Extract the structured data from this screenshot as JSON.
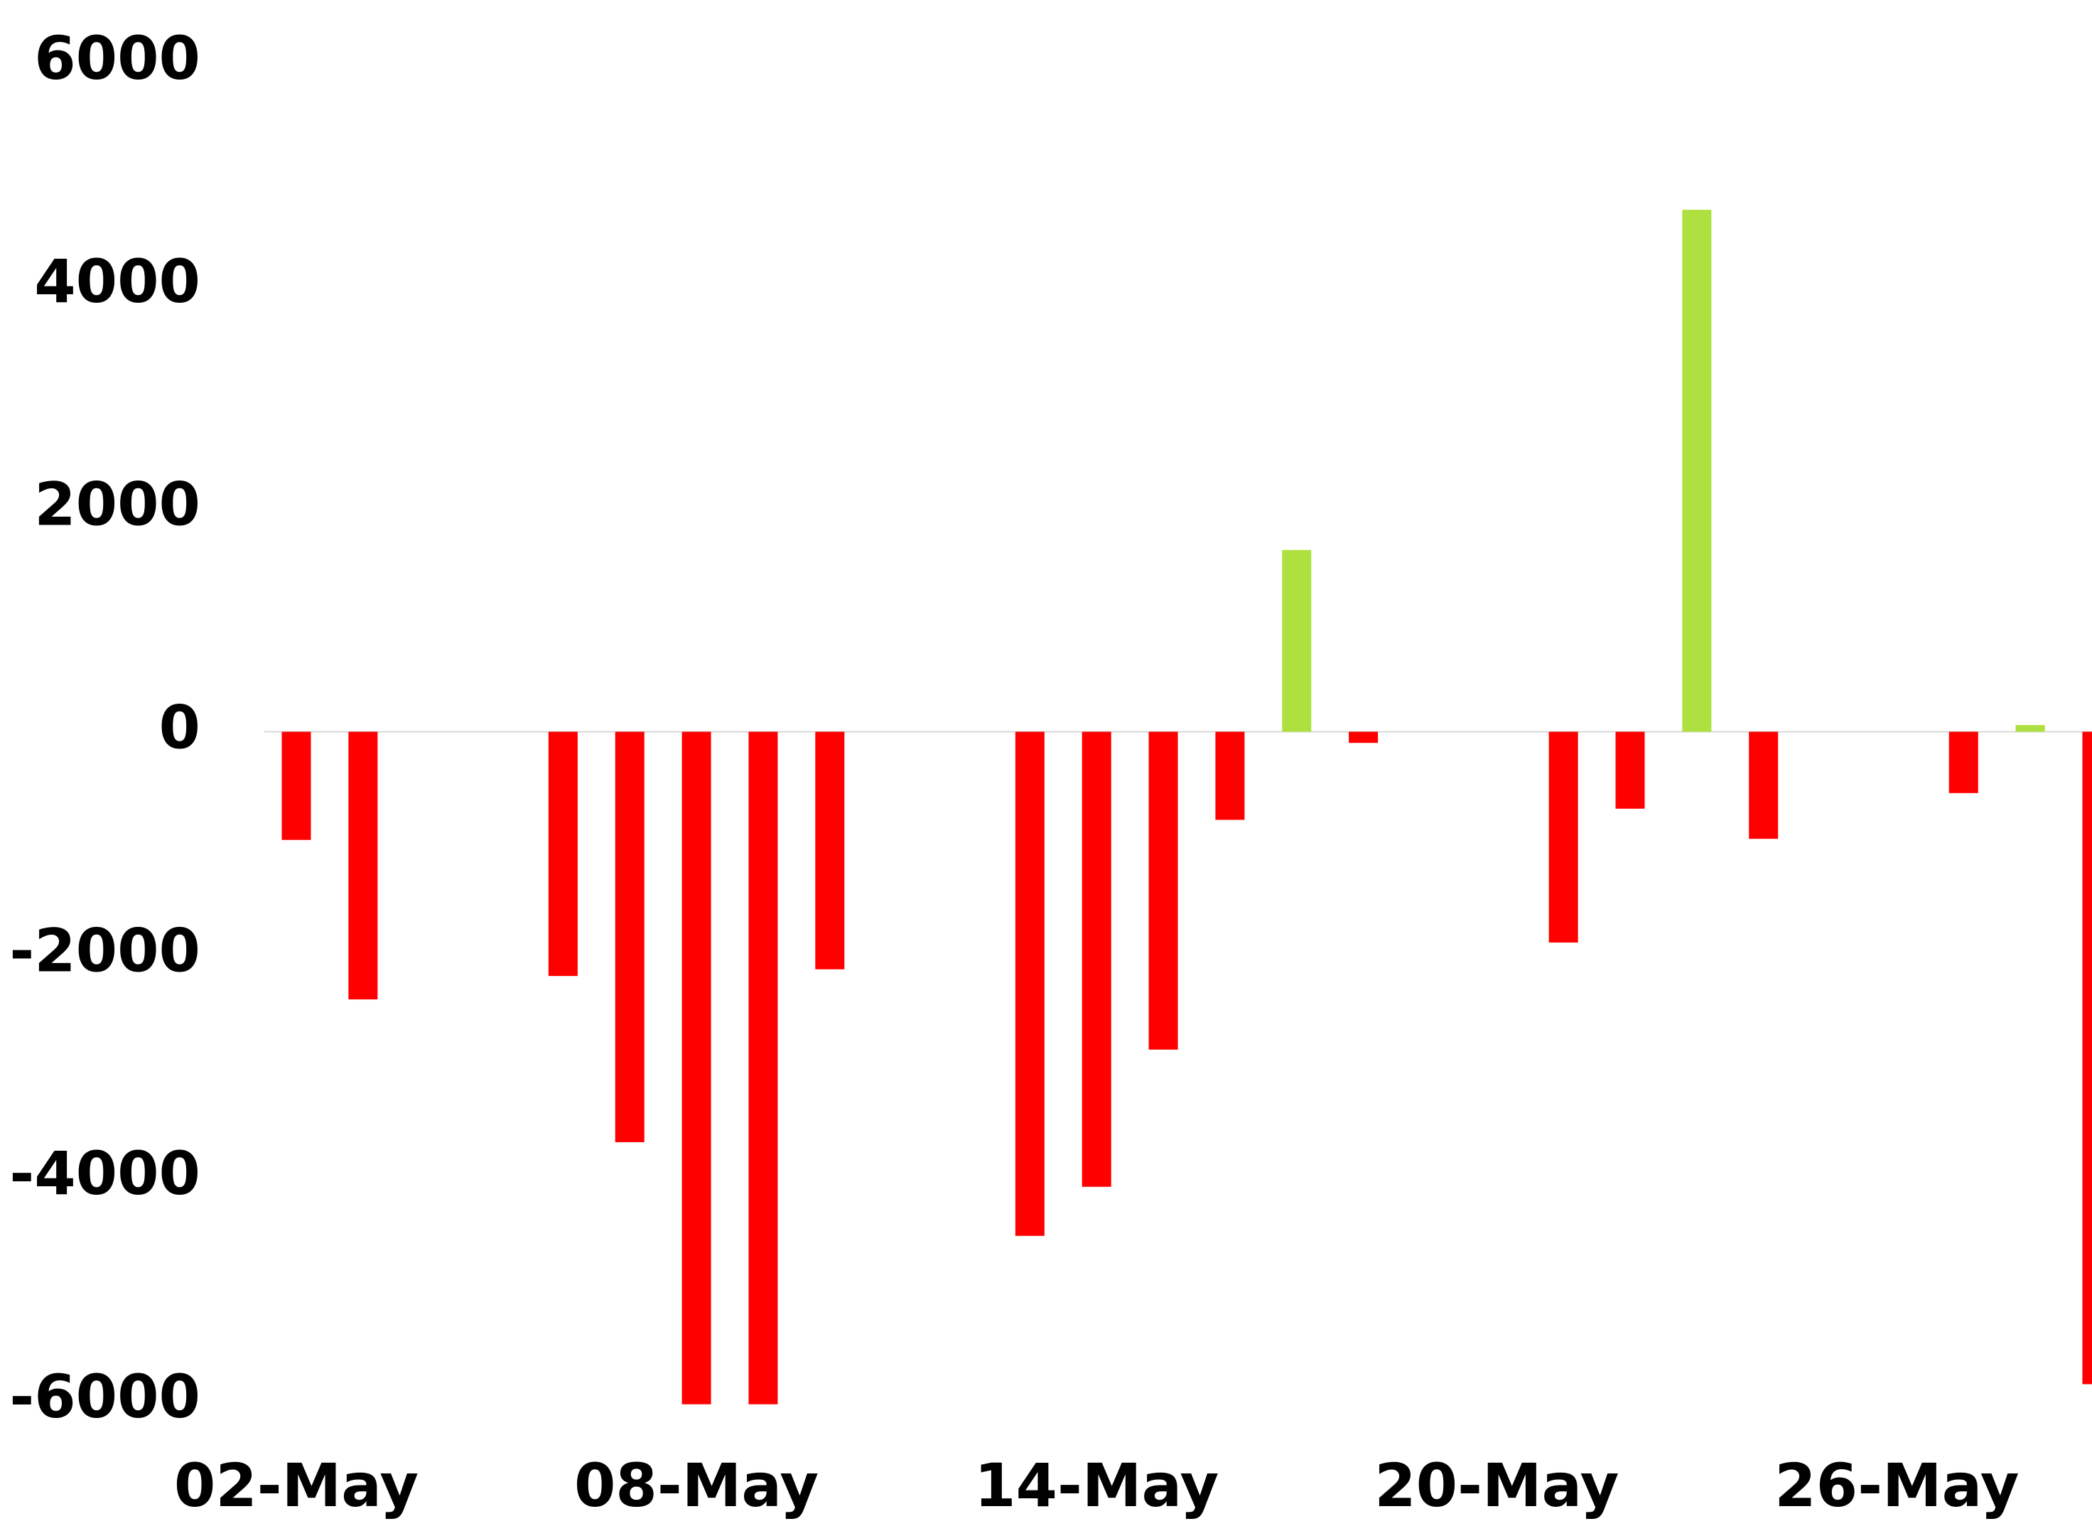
{
  "chart_data": {
    "type": "bar",
    "categories": [
      "02-May",
      null,
      null,
      null,
      null,
      null,
      "08-May",
      null,
      null,
      null,
      null,
      null,
      "14-May",
      null,
      null,
      null,
      null,
      null,
      "20-May",
      null,
      null,
      null,
      null,
      null,
      "26-May",
      null,
      null,
      null
    ],
    "values": [
      -970,
      -2400,
      null,
      null,
      -2190,
      -3680,
      -6030,
      -6030,
      -2130,
      null,
      null,
      -4520,
      -4080,
      -2850,
      -790,
      1630,
      -100,
      null,
      null,
      -1890,
      -690,
      4680,
      -960,
      null,
      null,
      -550,
      60,
      -5850
    ],
    "positive_color": "#aee040",
    "negative_color": "#ff0000",
    "ylim": [
      -6000,
      6000
    ],
    "yticks": [
      -6000,
      -4000,
      -2000,
      0,
      2000,
      4000,
      6000
    ]
  }
}
